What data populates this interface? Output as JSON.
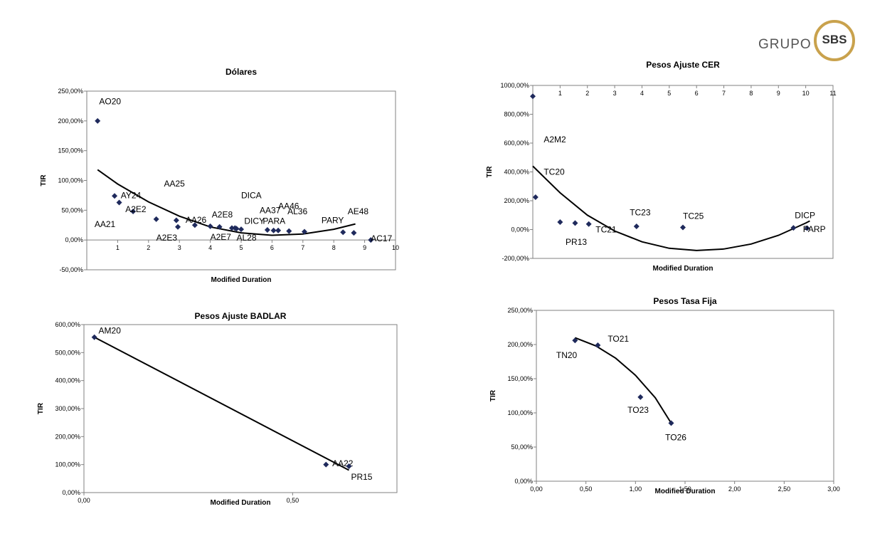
{
  "logo": {
    "text": "GRUPO",
    "mark": "SBS",
    "color": "#c9a24d"
  },
  "chart_data": [
    {
      "id": "dolares",
      "type": "scatter",
      "title": "Dólares",
      "xlabel": "Modified Duration",
      "ylabel": "TIR",
      "xlim": [
        0,
        10
      ],
      "ylim": [
        -50,
        250
      ],
      "grid": false,
      "x_ticks": [
        {
          "v": 0,
          "t": ""
        },
        {
          "v": 1,
          "t": "1"
        },
        {
          "v": 2,
          "t": "2"
        },
        {
          "v": 3,
          "t": "3"
        },
        {
          "v": 4,
          "t": "4"
        },
        {
          "v": 5,
          "t": "5"
        },
        {
          "v": 6,
          "t": "6"
        },
        {
          "v": 7,
          "t": "7"
        },
        {
          "v": 8,
          "t": "8"
        },
        {
          "v": 9,
          "t": "9"
        },
        {
          "v": 10,
          "t": "10"
        }
      ],
      "y_ticks": [
        {
          "v": -50,
          "t": "-50,00%"
        },
        {
          "v": 0,
          "t": "0,00%"
        },
        {
          "v": 50,
          "t": "50,00%"
        },
        {
          "v": 100,
          "t": "100,00%"
        },
        {
          "v": 150,
          "t": "150,00%"
        },
        {
          "v": 200,
          "t": "200,00%"
        },
        {
          "v": 250,
          "t": "250,00%"
        }
      ],
      "points": [
        {
          "x": 0.35,
          "y": 200,
          "label": "AO20",
          "lx": 0.4,
          "ly": 228
        },
        {
          "x": 0.9,
          "y": 74,
          "label": "AY24",
          "lx": 1.1,
          "ly": 70
        },
        {
          "x": 1.05,
          "y": 63,
          "label": "",
          "lx": 0,
          "ly": 0
        },
        {
          "x": 1.5,
          "y": 48,
          "label": "A2E2",
          "lx": 1.25,
          "ly": 47
        },
        {
          "x": 2.25,
          "y": 35,
          "label": "AA21",
          "lx": 0.25,
          "ly": 22
        },
        {
          "x": 2.9,
          "y": 33,
          "label": "AA25",
          "lx": 2.5,
          "ly": 90
        },
        {
          "x": 2.95,
          "y": 22,
          "label": "A2E3",
          "lx": 2.25,
          "ly": -1
        },
        {
          "x": 3.5,
          "y": 25,
          "label": "AA26",
          "lx": 3.2,
          "ly": 29
        },
        {
          "x": 4.0,
          "y": 23,
          "label": "A2E8",
          "lx": 4.05,
          "ly": 38
        },
        {
          "x": 4.3,
          "y": 22,
          "label": "",
          "lx": 0,
          "ly": 0
        },
        {
          "x": 4.7,
          "y": 20,
          "label": "A2E7",
          "lx": 4.0,
          "ly": 0
        },
        {
          "x": 4.8,
          "y": 20,
          "label": "",
          "lx": 0,
          "ly": 0
        },
        {
          "x": 4.85,
          "y": 19,
          "label": "AL28",
          "lx": 4.85,
          "ly": -1
        },
        {
          "x": 5.0,
          "y": 18,
          "label": "DICY",
          "lx": 5.1,
          "ly": 27
        },
        {
          "x": 5.85,
          "y": 17,
          "label": "AA37",
          "lx": 5.6,
          "ly": 45
        },
        {
          "x": 6.05,
          "y": 16,
          "label": "PARA",
          "lx": 5.7,
          "ly": 27
        },
        {
          "x": 6.2,
          "y": 16,
          "label": "DICA",
          "lx": 5.0,
          "ly": 70
        },
        {
          "x": 6.55,
          "y": 15,
          "label": "AA46",
          "lx": 6.2,
          "ly": 52
        },
        {
          "x": 7.05,
          "y": 14,
          "label": "AL36",
          "lx": 6.5,
          "ly": 43
        },
        {
          "x": 8.3,
          "y": 13,
          "label": "PARY",
          "lx": 7.6,
          "ly": 28
        },
        {
          "x": 8.65,
          "y": 12,
          "label": "AE48",
          "lx": 8.45,
          "ly": 43
        },
        {
          "x": 9.2,
          "y": 0,
          "label": "AC17",
          "lx": 9.2,
          "ly": -2
        }
      ],
      "trend": [
        {
          "x": 0.35,
          "y": 118
        },
        {
          "x": 1,
          "y": 94
        },
        {
          "x": 2,
          "y": 64
        },
        {
          "x": 3,
          "y": 40
        },
        {
          "x": 4,
          "y": 22
        },
        {
          "x": 5,
          "y": 12
        },
        {
          "x": 6,
          "y": 8
        },
        {
          "x": 7,
          "y": 10
        },
        {
          "x": 8,
          "y": 18
        },
        {
          "x": 8.7,
          "y": 27
        }
      ]
    },
    {
      "id": "badlar",
      "type": "scatter",
      "title": "Pesos Ajuste BADLAR",
      "xlabel": "Modified Duration",
      "ylabel": "TIR",
      "xlim": [
        0,
        0.75
      ],
      "ylim": [
        0,
        600
      ],
      "grid": false,
      "x_ticks": [
        {
          "v": 0,
          "t": "0,00"
        },
        {
          "v": 0.5,
          "t": "0,50"
        }
      ],
      "y_ticks": [
        {
          "v": 0,
          "t": "0,00%"
        },
        {
          "v": 100,
          "t": "100,00%"
        },
        {
          "v": 200,
          "t": "200,00%"
        },
        {
          "v": 300,
          "t": "300,00%"
        },
        {
          "v": 400,
          "t": "400,00%"
        },
        {
          "v": 500,
          "t": "500,00%"
        },
        {
          "v": 600,
          "t": "600,00%"
        }
      ],
      "points": [
        {
          "x": 0.025,
          "y": 555,
          "label": "AM20",
          "lx": 0.035,
          "ly": 568
        },
        {
          "x": 0.58,
          "y": 100,
          "label": "AA22",
          "lx": 0.595,
          "ly": 94
        },
        {
          "x": 0.635,
          "y": 94,
          "label": "PR15",
          "lx": 0.64,
          "ly": 46
        }
      ],
      "trend": [
        {
          "x": 0.025,
          "y": 555
        },
        {
          "x": 0.635,
          "y": 80
        }
      ]
    },
    {
      "id": "cer",
      "type": "scatter",
      "title": "Pesos Ajuste CER",
      "xlabel": "Modified Duration",
      "ylabel": "TIR",
      "xlim": [
        0,
        11
      ],
      "ylim": [
        -200,
        1000
      ],
      "grid": false,
      "x_axis_position": "top",
      "x_ticks": [
        {
          "v": 1,
          "t": "1"
        },
        {
          "v": 2,
          "t": "2"
        },
        {
          "v": 3,
          "t": "3"
        },
        {
          "v": 4,
          "t": "4"
        },
        {
          "v": 5,
          "t": "5"
        },
        {
          "v": 6,
          "t": "6"
        },
        {
          "v": 7,
          "t": "7"
        },
        {
          "v": 8,
          "t": "8"
        },
        {
          "v": 9,
          "t": "9"
        },
        {
          "v": 10,
          "t": "10"
        },
        {
          "v": 11,
          "t": "11"
        }
      ],
      "y_ticks": [
        {
          "v": -200,
          "t": "-200,00%"
        },
        {
          "v": 0,
          "t": "0,00%"
        },
        {
          "v": 200,
          "t": "200,00%"
        },
        {
          "v": 400,
          "t": "400,00%"
        },
        {
          "v": 600,
          "t": "600,00%"
        },
        {
          "v": 800,
          "t": "800,00%"
        },
        {
          "v": 1000,
          "t": "1000,00%"
        }
      ],
      "points": [
        {
          "x": 0.0,
          "y": 925,
          "label": "",
          "lx": 0,
          "ly": 0
        },
        {
          "x": 0.1,
          "y": 225,
          "label": "A2M2",
          "lx": 0.4,
          "ly": 605
        },
        {
          "x": 1.0,
          "y": 52,
          "label": "TC20",
          "lx": 0.4,
          "ly": 380
        },
        {
          "x": 1.55,
          "y": 45,
          "label": "PR13",
          "lx": 1.2,
          "ly": -105
        },
        {
          "x": 2.05,
          "y": 38,
          "label": "TC21",
          "lx": 2.3,
          "ly": -20
        },
        {
          "x": 3.8,
          "y": 22,
          "label": "TC23",
          "lx": 3.55,
          "ly": 100
        },
        {
          "x": 5.5,
          "y": 15,
          "label": "TC25",
          "lx": 5.5,
          "ly": 75
        },
        {
          "x": 9.55,
          "y": 12,
          "label": "DICP",
          "lx": 9.6,
          "ly": 78
        },
        {
          "x": 10.05,
          "y": 10,
          "label": "PARP",
          "lx": 9.9,
          "ly": -18
        }
      ],
      "trend": [
        {
          "x": 0,
          "y": 440
        },
        {
          "x": 1,
          "y": 255
        },
        {
          "x": 2,
          "y": 100
        },
        {
          "x": 3,
          "y": -10
        },
        {
          "x": 4,
          "y": -85
        },
        {
          "x": 5,
          "y": -130
        },
        {
          "x": 6,
          "y": -145
        },
        {
          "x": 7,
          "y": -135
        },
        {
          "x": 8,
          "y": -100
        },
        {
          "x": 9,
          "y": -40
        },
        {
          "x": 10,
          "y": 45
        },
        {
          "x": 10.15,
          "y": 60
        }
      ]
    },
    {
      "id": "tasa-fija",
      "type": "scatter",
      "title": "Pesos Tasa Fija",
      "xlabel": "Modified Duration",
      "ylabel": "TIR",
      "xlim": [
        0,
        3
      ],
      "ylim": [
        0,
        250
      ],
      "grid": false,
      "x_ticks": [
        {
          "v": 0,
          "t": "0,00"
        },
        {
          "v": 0.5,
          "t": "0,50"
        },
        {
          "v": 1,
          "t": "1,00"
        },
        {
          "v": 1.5,
          "t": "1,50"
        },
        {
          "v": 2,
          "t": "2,00"
        },
        {
          "v": 2.5,
          "t": "2,50"
        },
        {
          "v": 3,
          "t": "3,00"
        }
      ],
      "y_ticks": [
        {
          "v": 0,
          "t": "0,00%"
        },
        {
          "v": 50,
          "t": "50,00%"
        },
        {
          "v": 100,
          "t": "100,00%"
        },
        {
          "v": 150,
          "t": "150,00%"
        },
        {
          "v": 200,
          "t": "200,00%"
        },
        {
          "v": 250,
          "t": "250,00%"
        }
      ],
      "points": [
        {
          "x": 0.39,
          "y": 206,
          "label": "TN20",
          "lx": 0.2,
          "ly": 180
        },
        {
          "x": 0.62,
          "y": 199,
          "label": "TO21",
          "lx": 0.72,
          "ly": 204
        },
        {
          "x": 1.05,
          "y": 123,
          "label": "TO23",
          "lx": 0.92,
          "ly": 100
        },
        {
          "x": 1.36,
          "y": 85,
          "label": "TO26",
          "lx": 1.3,
          "ly": 60
        }
      ],
      "trend": [
        {
          "x": 0.39,
          "y": 210
        },
        {
          "x": 0.6,
          "y": 198
        },
        {
          "x": 0.8,
          "y": 180
        },
        {
          "x": 1.0,
          "y": 155
        },
        {
          "x": 1.2,
          "y": 122
        },
        {
          "x": 1.36,
          "y": 85
        }
      ]
    }
  ]
}
